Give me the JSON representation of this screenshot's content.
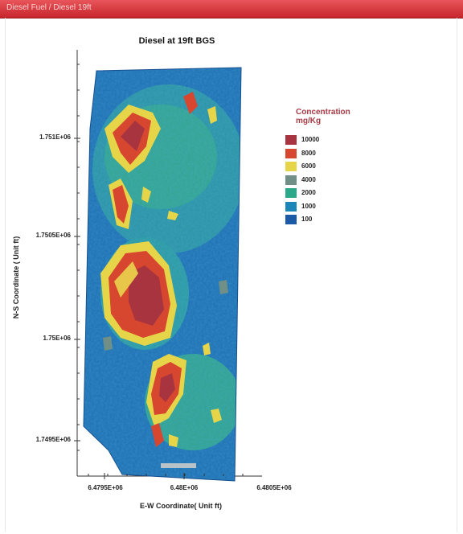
{
  "window": {
    "title": "Diesel Fuel / Diesel 19ft"
  },
  "chart_data": {
    "type": "heatmap",
    "title": "Diesel at 19ft BGS",
    "xlabel": "E-W Coordinate( Unit ft)",
    "ylabel": "N-S Coordinate ( Unit ft)",
    "x_tick_labels": [
      "6.4795E+06",
      "6.48E+06",
      "6.4805E+06"
    ],
    "y_tick_labels": [
      "1.751E+06",
      "1.7505E+06",
      "1.75E+06",
      "1.7495E+06"
    ],
    "legend": {
      "title": "Concentration mg/Kg",
      "placement": "right",
      "levels": [
        {
          "label": "10000",
          "color": "#a8343f"
        },
        {
          "label": "8000",
          "color": "#d7472f"
        },
        {
          "label": "6000",
          "color": "#e6d548"
        },
        {
          "label": "4000",
          "color": "#6f8f87"
        },
        {
          "label": "2000",
          "color": "#2aa889"
        },
        {
          "label": "1000",
          "color": "#1b86b7"
        },
        {
          "label": "100",
          "color": "#1c5aa8"
        }
      ]
    }
  }
}
